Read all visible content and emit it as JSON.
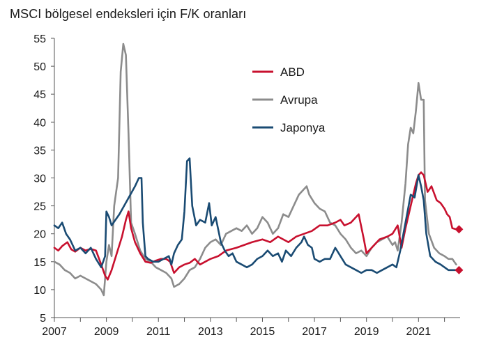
{
  "chart_data": {
    "type": "line",
    "title": "MSCI bölgesel endeksleri için F/K oranları",
    "xlabel": "",
    "ylabel": "",
    "xlim": [
      2007,
      2022.6
    ],
    "ylim": [
      5,
      55
    ],
    "yticks": [
      5,
      10,
      15,
      20,
      25,
      30,
      35,
      40,
      45,
      50,
      55
    ],
    "xticks": [
      2007,
      2009,
      2011,
      2013,
      2015,
      2017,
      2019,
      2021
    ],
    "grid": false,
    "legend_position": "top-right",
    "series": [
      {
        "name": "ABD",
        "color": "#c8102e",
        "end_marker": "diamond",
        "points": [
          [
            2007.0,
            17.5
          ],
          [
            2007.15,
            17.0
          ],
          [
            2007.3,
            17.8
          ],
          [
            2007.5,
            18.5
          ],
          [
            2007.65,
            17.2
          ],
          [
            2007.8,
            16.8
          ],
          [
            2008.0,
            17.5
          ],
          [
            2008.2,
            17.0
          ],
          [
            2008.4,
            17.3
          ],
          [
            2008.6,
            17.0
          ],
          [
            2008.8,
            14.5
          ],
          [
            2008.95,
            12.5
          ],
          [
            2009.05,
            11.8
          ],
          [
            2009.2,
            13.5
          ],
          [
            2009.4,
            16.5
          ],
          [
            2009.6,
            19.5
          ],
          [
            2009.75,
            22.5
          ],
          [
            2009.85,
            24.0
          ],
          [
            2009.95,
            21.0
          ],
          [
            2010.1,
            18.5
          ],
          [
            2010.3,
            16.5
          ],
          [
            2010.5,
            15.0
          ],
          [
            2010.7,
            14.8
          ],
          [
            2010.9,
            15.2
          ],
          [
            2011.1,
            15.5
          ],
          [
            2011.3,
            15.5
          ],
          [
            2011.45,
            15.0
          ],
          [
            2011.6,
            13.0
          ],
          [
            2011.8,
            14.0
          ],
          [
            2012.0,
            14.5
          ],
          [
            2012.2,
            14.8
          ],
          [
            2012.4,
            15.5
          ],
          [
            2012.6,
            14.5
          ],
          [
            2012.8,
            15.0
          ],
          [
            2013.0,
            15.5
          ],
          [
            2013.3,
            16.0
          ],
          [
            2013.6,
            17.0
          ],
          [
            2014.0,
            17.5
          ],
          [
            2014.3,
            18.0
          ],
          [
            2014.6,
            18.5
          ],
          [
            2015.0,
            19.0
          ],
          [
            2015.3,
            18.5
          ],
          [
            2015.6,
            19.5
          ],
          [
            2016.0,
            18.5
          ],
          [
            2016.3,
            19.5
          ],
          [
            2016.6,
            20.0
          ],
          [
            2016.9,
            20.5
          ],
          [
            2017.2,
            21.5
          ],
          [
            2017.5,
            21.5
          ],
          [
            2017.8,
            22.0
          ],
          [
            2018.0,
            22.5
          ],
          [
            2018.15,
            21.5
          ],
          [
            2018.4,
            22.0
          ],
          [
            2018.7,
            23.5
          ],
          [
            2018.9,
            19.0
          ],
          [
            2019.0,
            16.5
          ],
          [
            2019.2,
            17.5
          ],
          [
            2019.5,
            19.0
          ],
          [
            2019.8,
            19.5
          ],
          [
            2020.0,
            20.0
          ],
          [
            2020.2,
            21.5
          ],
          [
            2020.35,
            17.5
          ],
          [
            2020.5,
            21.0
          ],
          [
            2020.7,
            25.0
          ],
          [
            2020.9,
            29.0
          ],
          [
            2021.0,
            30.5
          ],
          [
            2021.1,
            31.0
          ],
          [
            2021.2,
            30.5
          ],
          [
            2021.35,
            27.5
          ],
          [
            2021.5,
            28.5
          ],
          [
            2021.7,
            26.0
          ],
          [
            2021.85,
            25.5
          ],
          [
            2022.0,
            24.5
          ],
          [
            2022.1,
            23.5
          ],
          [
            2022.2,
            23.0
          ],
          [
            2022.3,
            21.0
          ],
          [
            2022.45,
            20.8
          ]
        ]
      },
      {
        "name": "Avrupa",
        "color": "#8c8c8c",
        "end_marker": "none",
        "points": [
          [
            2007.0,
            15.0
          ],
          [
            2007.2,
            14.5
          ],
          [
            2007.4,
            13.5
          ],
          [
            2007.6,
            13.0
          ],
          [
            2007.8,
            12.0
          ],
          [
            2008.0,
            12.5
          ],
          [
            2008.2,
            12.0
          ],
          [
            2008.4,
            11.5
          ],
          [
            2008.6,
            11.0
          ],
          [
            2008.8,
            10.0
          ],
          [
            2008.9,
            9.0
          ],
          [
            2009.0,
            15.0
          ],
          [
            2009.1,
            18.0
          ],
          [
            2009.2,
            16.0
          ],
          [
            2009.3,
            25.0
          ],
          [
            2009.45,
            30.0
          ],
          [
            2009.55,
            49.0
          ],
          [
            2009.65,
            54.0
          ],
          [
            2009.75,
            52.0
          ],
          [
            2009.85,
            38.0
          ],
          [
            2009.95,
            22.0
          ],
          [
            2010.1,
            20.0
          ],
          [
            2010.3,
            17.0
          ],
          [
            2010.5,
            15.5
          ],
          [
            2010.7,
            15.0
          ],
          [
            2010.9,
            14.0
          ],
          [
            2011.1,
            13.5
          ],
          [
            2011.3,
            13.0
          ],
          [
            2011.5,
            12.0
          ],
          [
            2011.6,
            10.5
          ],
          [
            2011.8,
            11.0
          ],
          [
            2012.0,
            12.0
          ],
          [
            2012.2,
            13.5
          ],
          [
            2012.4,
            14.0
          ],
          [
            2012.6,
            15.5
          ],
          [
            2012.8,
            17.5
          ],
          [
            2013.0,
            18.5
          ],
          [
            2013.2,
            19.0
          ],
          [
            2013.4,
            18.0
          ],
          [
            2013.6,
            20.0
          ],
          [
            2013.8,
            20.5
          ],
          [
            2014.0,
            21.0
          ],
          [
            2014.2,
            20.5
          ],
          [
            2014.4,
            21.5
          ],
          [
            2014.6,
            20.0
          ],
          [
            2014.8,
            21.0
          ],
          [
            2015.0,
            23.0
          ],
          [
            2015.2,
            22.0
          ],
          [
            2015.4,
            20.0
          ],
          [
            2015.6,
            21.0
          ],
          [
            2015.8,
            23.5
          ],
          [
            2016.0,
            23.0
          ],
          [
            2016.2,
            25.0
          ],
          [
            2016.4,
            27.0
          ],
          [
            2016.6,
            28.0
          ],
          [
            2016.7,
            28.5
          ],
          [
            2016.8,
            27.0
          ],
          [
            2017.0,
            25.5
          ],
          [
            2017.2,
            24.5
          ],
          [
            2017.4,
            24.0
          ],
          [
            2017.6,
            22.0
          ],
          [
            2017.8,
            21.5
          ],
          [
            2018.0,
            20.0
          ],
          [
            2018.2,
            19.0
          ],
          [
            2018.4,
            17.5
          ],
          [
            2018.6,
            16.5
          ],
          [
            2018.8,
            17.0
          ],
          [
            2019.0,
            16.0
          ],
          [
            2019.2,
            17.5
          ],
          [
            2019.4,
            18.5
          ],
          [
            2019.6,
            19.0
          ],
          [
            2019.8,
            19.5
          ],
          [
            2020.0,
            18.0
          ],
          [
            2020.1,
            18.5
          ],
          [
            2020.2,
            17.0
          ],
          [
            2020.35,
            22.0
          ],
          [
            2020.5,
            29.0
          ],
          [
            2020.6,
            36.0
          ],
          [
            2020.7,
            39.0
          ],
          [
            2020.8,
            38.0
          ],
          [
            2020.9,
            42.0
          ],
          [
            2021.0,
            47.0
          ],
          [
            2021.1,
            44.0
          ],
          [
            2021.2,
            44.0
          ],
          [
            2021.25,
            26.0
          ],
          [
            2021.4,
            20.0
          ],
          [
            2021.6,
            17.5
          ],
          [
            2021.8,
            16.5
          ],
          [
            2022.0,
            16.0
          ],
          [
            2022.15,
            15.5
          ],
          [
            2022.3,
            15.5
          ],
          [
            2022.45,
            14.5
          ]
        ]
      },
      {
        "name": "Japonya",
        "color": "#1a4b73",
        "end_marker": "diamond",
        "points": [
          [
            2007.0,
            21.5
          ],
          [
            2007.15,
            21.0
          ],
          [
            2007.3,
            22.0
          ],
          [
            2007.45,
            20.0
          ],
          [
            2007.6,
            19.0
          ],
          [
            2007.8,
            17.0
          ],
          [
            2008.0,
            17.5
          ],
          [
            2008.2,
            16.5
          ],
          [
            2008.4,
            17.5
          ],
          [
            2008.6,
            15.5
          ],
          [
            2008.8,
            14.0
          ],
          [
            2008.95,
            16.0
          ],
          [
            2009.0,
            24.0
          ],
          [
            2009.1,
            23.0
          ],
          [
            2009.2,
            21.5
          ],
          [
            2009.5,
            23.5
          ],
          [
            2009.8,
            26.0
          ],
          [
            2010.1,
            28.5
          ],
          [
            2010.25,
            30.0
          ],
          [
            2010.35,
            30.0
          ],
          [
            2010.4,
            22.0
          ],
          [
            2010.5,
            16.0
          ],
          [
            2010.6,
            15.5
          ],
          [
            2010.8,
            15.0
          ],
          [
            2011.0,
            15.0
          ],
          [
            2011.2,
            15.5
          ],
          [
            2011.4,
            16.0
          ],
          [
            2011.5,
            14.5
          ],
          [
            2011.6,
            16.5
          ],
          [
            2011.75,
            18.0
          ],
          [
            2011.9,
            19.0
          ],
          [
            2012.0,
            24.0
          ],
          [
            2012.1,
            33.0
          ],
          [
            2012.2,
            33.5
          ],
          [
            2012.3,
            25.0
          ],
          [
            2012.45,
            21.5
          ],
          [
            2012.6,
            22.5
          ],
          [
            2012.8,
            22.0
          ],
          [
            2012.95,
            25.5
          ],
          [
            2013.05,
            21.5
          ],
          [
            2013.2,
            23.0
          ],
          [
            2013.4,
            18.5
          ],
          [
            2013.55,
            17.0
          ],
          [
            2013.7,
            16.0
          ],
          [
            2013.85,
            16.5
          ],
          [
            2014.0,
            15.0
          ],
          [
            2014.2,
            14.5
          ],
          [
            2014.4,
            14.0
          ],
          [
            2014.6,
            14.5
          ],
          [
            2014.8,
            15.5
          ],
          [
            2015.0,
            16.0
          ],
          [
            2015.2,
            17.0
          ],
          [
            2015.4,
            16.0
          ],
          [
            2015.6,
            16.5
          ],
          [
            2015.75,
            15.0
          ],
          [
            2015.9,
            17.0
          ],
          [
            2016.1,
            16.0
          ],
          [
            2016.3,
            17.5
          ],
          [
            2016.5,
            18.5
          ],
          [
            2016.6,
            19.5
          ],
          [
            2016.75,
            18.0
          ],
          [
            2016.9,
            17.5
          ],
          [
            2017.0,
            15.5
          ],
          [
            2017.2,
            15.0
          ],
          [
            2017.4,
            15.5
          ],
          [
            2017.6,
            15.5
          ],
          [
            2017.8,
            17.5
          ],
          [
            2018.0,
            16.0
          ],
          [
            2018.2,
            14.5
          ],
          [
            2018.4,
            14.0
          ],
          [
            2018.6,
            13.5
          ],
          [
            2018.8,
            13.0
          ],
          [
            2019.0,
            13.5
          ],
          [
            2019.2,
            13.5
          ],
          [
            2019.4,
            13.0
          ],
          [
            2019.6,
            13.5
          ],
          [
            2019.8,
            14.0
          ],
          [
            2020.0,
            14.5
          ],
          [
            2020.15,
            14.0
          ],
          [
            2020.3,
            17.0
          ],
          [
            2020.5,
            22.0
          ],
          [
            2020.7,
            27.0
          ],
          [
            2020.85,
            26.5
          ],
          [
            2021.0,
            30.5
          ],
          [
            2021.1,
            28.5
          ],
          [
            2021.2,
            26.0
          ],
          [
            2021.3,
            20.0
          ],
          [
            2021.45,
            16.0
          ],
          [
            2021.65,
            15.0
          ],
          [
            2021.85,
            14.5
          ],
          [
            2022.0,
            14.0
          ],
          [
            2022.15,
            13.5
          ],
          [
            2022.3,
            13.5
          ],
          [
            2022.45,
            13.5
          ]
        ]
      }
    ]
  }
}
